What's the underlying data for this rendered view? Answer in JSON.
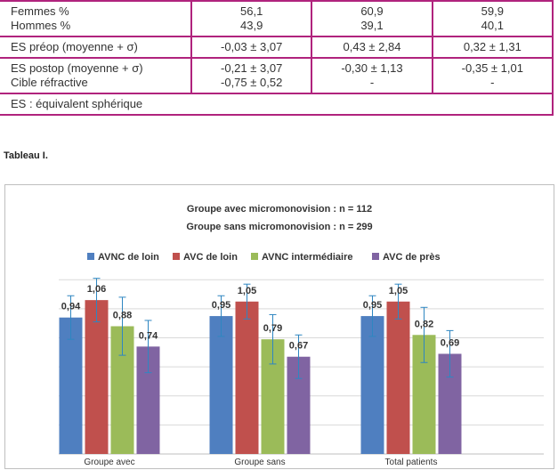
{
  "table": {
    "rows": [
      {
        "label": [
          "Femmes %",
          "Hommes %"
        ],
        "cols": [
          [
            "56,1",
            "43,9"
          ],
          [
            "60,9",
            "39,1"
          ],
          [
            "59,9",
            "40,1"
          ]
        ]
      },
      {
        "label": [
          "ES préop (moyenne + σ)"
        ],
        "cols": [
          [
            "-0,03 ± 3,07"
          ],
          [
            "0,43 ± 2,84"
          ],
          [
            "0,32 ± 1,31"
          ]
        ]
      },
      {
        "label": [
          "ES postop (moyenne + σ)",
          "Cible réfractive"
        ],
        "cols": [
          [
            "-0,21 ± 3,07",
            "-0,75 ± 0,52"
          ],
          [
            "-0,30 ± 1,13",
            "-"
          ],
          [
            "-0,35 ± 1,01",
            "-"
          ]
        ]
      },
      {
        "label": [
          "ES : équivalent sphérique"
        ],
        "cols": []
      }
    ]
  },
  "caption": "Tableau I.",
  "chart_data": {
    "type": "bar",
    "title_lines": [
      "Groupe avec micromonovision : n = 112",
      "Groupe sans micromonovision : n = 299"
    ],
    "categories": [
      "Groupe avec",
      "Groupe sans",
      "Total patients"
    ],
    "series": [
      {
        "name": "AVNC de loin",
        "color": "#4f7fc0",
        "values": [
          0.94,
          0.95,
          0.95
        ],
        "error": [
          0.15,
          0.14,
          0.14
        ]
      },
      {
        "name": "AVC de loin",
        "color": "#c0504d",
        "values": [
          1.06,
          1.05,
          1.05
        ],
        "error": [
          0.15,
          0.12,
          0.12
        ]
      },
      {
        "name": "AVNC intermédiaire",
        "color": "#9bbb59",
        "values": [
          0.88,
          0.79,
          0.82
        ],
        "error": [
          0.2,
          0.17,
          0.19
        ]
      },
      {
        "name": "AVC de près",
        "color": "#8064a2",
        "values": [
          0.74,
          0.67,
          0.69
        ],
        "error": [
          0.18,
          0.15,
          0.16
        ]
      }
    ],
    "value_labels": [
      [
        "0,94",
        "1,06",
        "0,88",
        "0,74"
      ],
      [
        "0,95",
        "1,05",
        "0,79",
        "0,67"
      ],
      [
        "0,95",
        "1,05",
        "0,82",
        "0,69"
      ]
    ],
    "ylim": [
      0,
      1.3
    ],
    "grid": true,
    "legend": "top"
  }
}
